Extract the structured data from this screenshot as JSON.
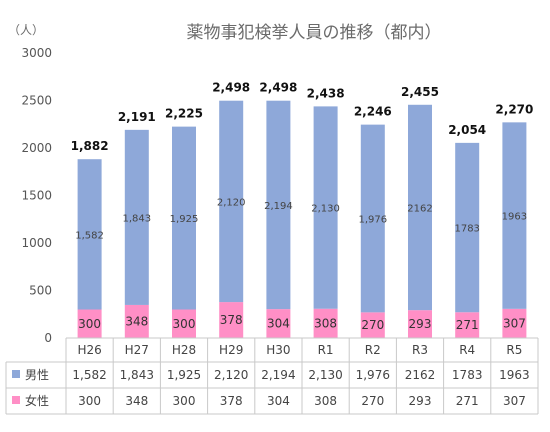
{
  "chart_data": {
    "type": "bar",
    "stacked": true,
    "title": "薬物事犯検挙人員の推移（都内）",
    "unit_label": "（人）",
    "categories": [
      "H26",
      "H27",
      "H28",
      "H29",
      "H30",
      "R1",
      "R2",
      "R3",
      "R4",
      "R5"
    ],
    "series": [
      {
        "name": "男性",
        "color": "#8EA8D9",
        "values": [
          1582,
          1843,
          1925,
          2120,
          2194,
          2130,
          1976,
          2162,
          1783,
          1963
        ],
        "labels": [
          "1,582",
          "1,843",
          "1,925",
          "2,120",
          "2,194",
          "2,130",
          "1,976",
          "2162",
          "1783",
          "1963"
        ]
      },
      {
        "name": "女性",
        "color": "#FF8FC6",
        "values": [
          300,
          348,
          300,
          378,
          304,
          308,
          270,
          293,
          271,
          307
        ],
        "labels": [
          "300",
          "348",
          "300",
          "378",
          "304",
          "308",
          "270",
          "293",
          "271",
          "307"
        ]
      }
    ],
    "totals": [
      "1,882",
      "2,191",
      "2,225",
      "2,498",
      "2,498",
      "2,438",
      "2,246",
      "2,455",
      "2,054",
      "2,270"
    ],
    "ylim": [
      0,
      3000
    ],
    "yticks": [
      0,
      500,
      1000,
      1500,
      2000,
      2500,
      3000
    ],
    "grid": false,
    "data_table": true
  }
}
